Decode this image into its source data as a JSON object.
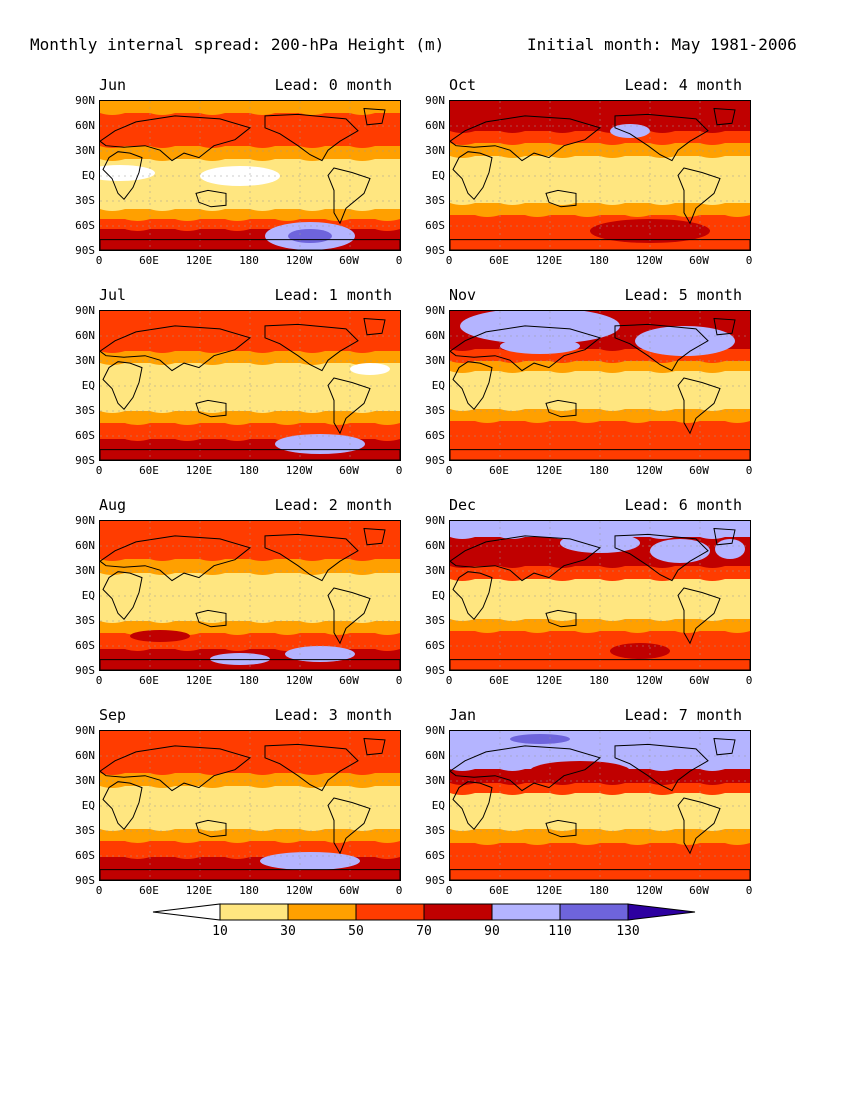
{
  "title_left": "Monthly internal spread: 200-hPa Height (m)",
  "title_right": "Initial month: May 1981-2006",
  "lat_labels": [
    "90N",
    "60N",
    "30N",
    "EQ",
    "30S",
    "60S",
    "90S"
  ],
  "lon_labels": [
    "0",
    "60E",
    "120E",
    "180",
    "120W",
    "60W",
    "0"
  ],
  "panels": [
    {
      "month": "Jun",
      "lead": "Lead: 0 month",
      "variant": "jun"
    },
    {
      "month": "Oct",
      "lead": "Lead: 4 month",
      "variant": "oct"
    },
    {
      "month": "Jul",
      "lead": "Lead: 1 month",
      "variant": "jul"
    },
    {
      "month": "Nov",
      "lead": "Lead: 5 month",
      "variant": "nov"
    },
    {
      "month": "Aug",
      "lead": "Lead: 2 month",
      "variant": "aug"
    },
    {
      "month": "Dec",
      "lead": "Lead: 6 month",
      "variant": "dec"
    },
    {
      "month": "Sep",
      "lead": "Lead: 3 month",
      "variant": "sep"
    },
    {
      "month": "Jan",
      "lead": "Lead: 7 month",
      "variant": "jan"
    }
  ],
  "colorbar": {
    "labels": [
      "10",
      "30",
      "50",
      "70",
      "90",
      "110",
      "130"
    ],
    "colors": [
      "#ffffff",
      "#ffe680",
      "#ffa000",
      "#ff3c00",
      "#c00000",
      "#b4b4ff",
      "#6e64dc",
      "#2d00a0"
    ]
  }
}
